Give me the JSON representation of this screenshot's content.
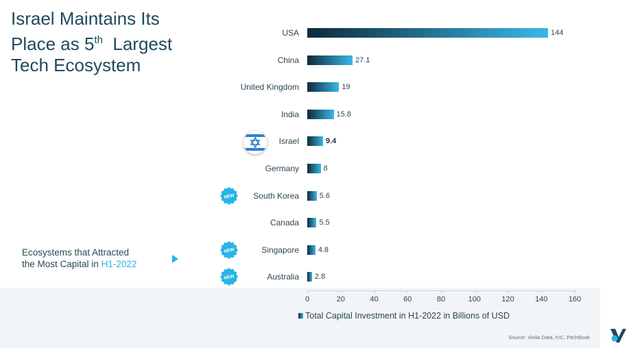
{
  "title": {
    "line1": "Israel Maintains Its",
    "line2a": "Place as 5",
    "line2sup": "th",
    "line2b": "  Largest",
    "line3": "Tech Ecosystem"
  },
  "subtitle": {
    "line1": "Ecosystems that Attracted",
    "line2a": "the Most Capital in ",
    "line2b": "H1-2022"
  },
  "source": "Source: Violia Data, IVC, PitchBook",
  "new_badge_text": "NEW",
  "colors": {
    "bar_dark": "#0e2a3a",
    "bar_light": "#3ab8e6",
    "accent": "#29b4e6",
    "title": "#1f4a5e"
  },
  "chart_data": {
    "type": "bar",
    "orientation": "horizontal",
    "title": "",
    "categories": [
      "USA",
      "China",
      "United Kingdom",
      "India",
      "Israel",
      "Germany",
      "South Korea",
      "Canada",
      "Singapore",
      "Australia"
    ],
    "values": [
      144,
      27.1,
      19,
      15.8,
      9.4,
      8,
      5.6,
      5.5,
      4.8,
      2.8
    ],
    "value_labels": [
      "144",
      "27.1",
      "19",
      "15.8",
      "9.4",
      "8",
      "5.6",
      "5.5",
      "4.8",
      "2.8"
    ],
    "highlighted": "Israel",
    "new_entries": [
      "South Korea",
      "Singapore",
      "Australia"
    ],
    "xlim": [
      0,
      160
    ],
    "xticks": [
      0,
      20,
      40,
      60,
      80,
      100,
      120,
      140,
      160
    ],
    "xlabel": "",
    "ylabel": "",
    "legend": [
      "Total Capital Investment in H1-2022 in Billions of USD"
    ],
    "legend_position": "bottom"
  }
}
